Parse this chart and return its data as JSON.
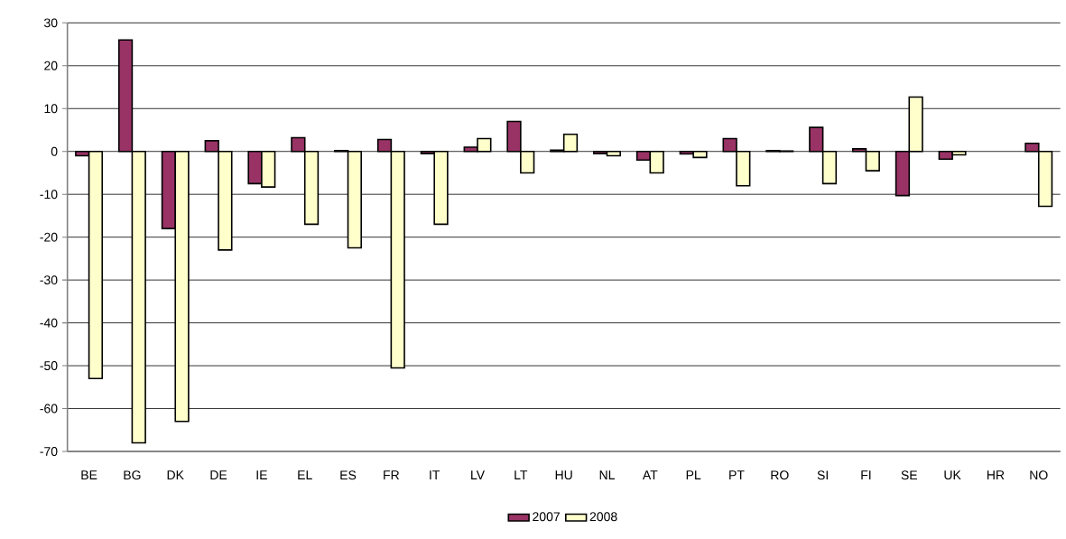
{
  "chart_data": {
    "type": "bar",
    "categories": [
      "BE",
      "BG",
      "DK",
      "DE",
      "IE",
      "EL",
      "ES",
      "FR",
      "IT",
      "LV",
      "LT",
      "HU",
      "NL",
      "AT",
      "PL",
      "PT",
      "RO",
      "SI",
      "FI",
      "SE",
      "UK",
      "HR",
      "NO"
    ],
    "series": [
      {
        "name": "2007",
        "color": "#993366",
        "values": [
          -1,
          26,
          -18,
          2.5,
          -7.5,
          3.2,
          0.2,
          2.8,
          -0.5,
          1,
          7,
          0.3,
          -0.5,
          -2,
          -0.6,
          3,
          0.2,
          5.6,
          0.6,
          -10.3,
          -1.8,
          null,
          1.9
        ]
      },
      {
        "name": "2008",
        "color": "#ffffcc",
        "values": [
          -53,
          -68,
          -63,
          -23,
          -8.3,
          -17,
          -22.5,
          -50.5,
          -17,
          3,
          -5,
          4,
          -1,
          -5,
          -1.4,
          -8,
          0.1,
          -7.5,
          -4.5,
          12.7,
          -0.8,
          null,
          -12.8
        ]
      }
    ],
    "ylim": [
      -70,
      30
    ],
    "yticks": [
      -70,
      -60,
      -50,
      -40,
      -30,
      -20,
      -10,
      0,
      10,
      20,
      30
    ],
    "grid": "y",
    "legend": "bottom"
  }
}
